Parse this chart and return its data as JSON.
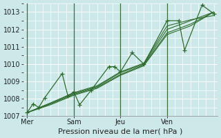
{
  "xlabel": "Pression niveau de la mer( hPa )",
  "bg_color": "#cce8e8",
  "grid_color": "#ffffff",
  "line_color": "#2d6b2d",
  "ylim": [
    1007.0,
    1013.5
  ],
  "yticks": [
    1007,
    1008,
    1009,
    1010,
    1011,
    1012,
    1013
  ],
  "day_labels": [
    "Mer",
    "Sam",
    "Jeu",
    "Ven"
  ],
  "xlabel_fontsize": 8,
  "tick_fontsize": 7,
  "smooth_lines": [
    {
      "x": [
        0,
        12,
        24,
        36,
        48,
        60,
        72,
        84,
        96
      ],
      "y": [
        1007.2,
        1007.75,
        1008.3,
        1008.7,
        1009.5,
        1010.0,
        1012.0,
        1012.5,
        1013.0
      ]
    },
    {
      "x": [
        0,
        12,
        24,
        36,
        48,
        60,
        72,
        84,
        96
      ],
      "y": [
        1007.2,
        1007.7,
        1008.25,
        1008.65,
        1009.4,
        1009.95,
        1011.8,
        1012.3,
        1013.0
      ]
    },
    {
      "x": [
        0,
        12,
        24,
        36,
        48,
        60,
        72,
        84,
        96
      ],
      "y": [
        1007.2,
        1007.65,
        1008.2,
        1008.6,
        1009.35,
        1009.9,
        1011.7,
        1012.2,
        1013.0
      ]
    },
    {
      "x": [
        0,
        12,
        24,
        36,
        48,
        60,
        72,
        84,
        96
      ],
      "y": [
        1007.2,
        1007.75,
        1008.35,
        1008.75,
        1009.55,
        1010.05,
        1012.2,
        1012.55,
        1012.8
      ]
    }
  ],
  "detail_x": [
    0,
    3,
    6,
    9,
    18,
    21,
    24,
    27,
    33,
    42,
    45,
    48,
    54,
    60,
    72,
    78,
    81,
    90,
    96
  ],
  "detail_y": [
    1007.2,
    1007.7,
    1007.5,
    1008.05,
    1009.45,
    1008.15,
    1008.4,
    1007.65,
    1008.5,
    1009.85,
    1009.85,
    1009.55,
    1010.65,
    1010.0,
    1012.5,
    1012.5,
    1010.8,
    1013.4,
    1012.9
  ],
  "xmin": 0,
  "xmax": 96
}
